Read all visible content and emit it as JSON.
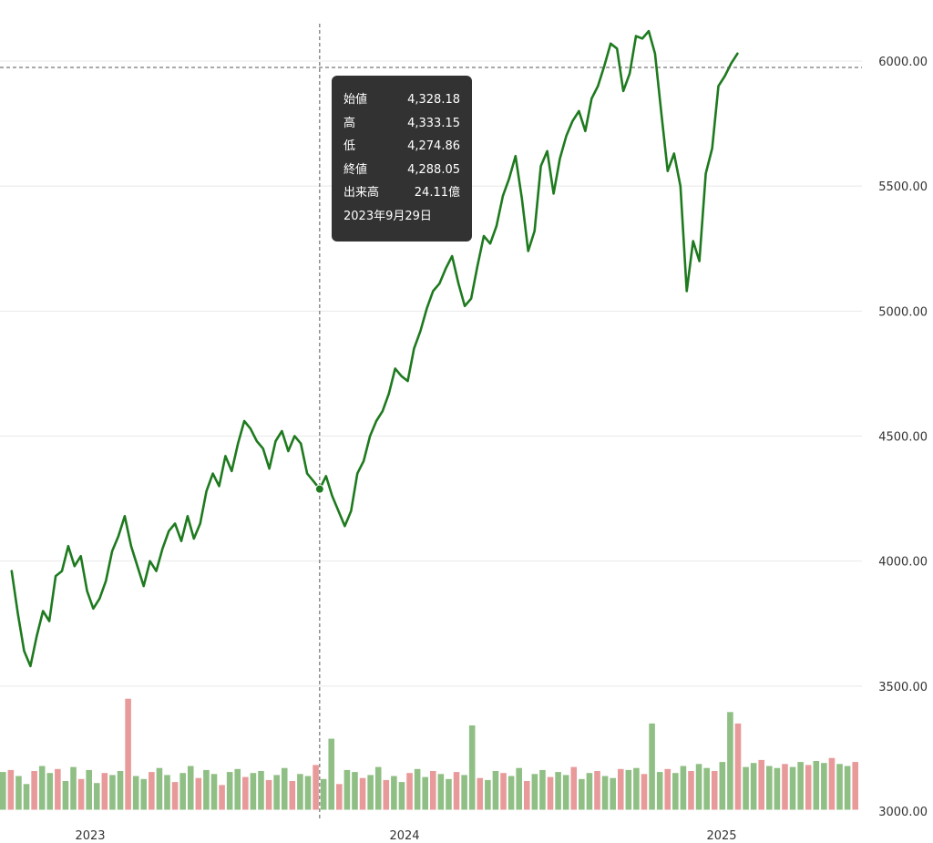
{
  "chart_data": {
    "type": "line",
    "y_ticks": [
      "6000.00",
      "5500.00",
      "5000.00",
      "4500.00",
      "4000.00",
      "3500.00",
      "3000.00"
    ],
    "x_ticks": [
      "2023",
      "2024",
      "2025"
    ],
    "ylim": [
      3000,
      6200
    ],
    "grid": "horizontal",
    "line_color": "#1e7a1e",
    "volume_up_color": "#8fbf84",
    "volume_down_color": "#e89a9a",
    "series": [
      {
        "values": [
          [
            2022.75,
            3960
          ],
          [
            2022.77,
            3790
          ],
          [
            2022.79,
            3640
          ],
          [
            2022.81,
            3580
          ],
          [
            2022.83,
            3700
          ],
          [
            2022.85,
            3800
          ],
          [
            2022.87,
            3760
          ],
          [
            2022.89,
            3940
          ],
          [
            2022.91,
            3960
          ],
          [
            2022.93,
            4060
          ],
          [
            2022.95,
            3980
          ],
          [
            2022.97,
            4020
          ],
          [
            2022.99,
            3880
          ],
          [
            2023.01,
            3810
          ],
          [
            2023.03,
            3850
          ],
          [
            2023.05,
            3920
          ],
          [
            2023.07,
            4040
          ],
          [
            2023.09,
            4100
          ],
          [
            2023.11,
            4180
          ],
          [
            2023.13,
            4060
          ],
          [
            2023.15,
            3980
          ],
          [
            2023.17,
            3900
          ],
          [
            2023.19,
            4000
          ],
          [
            2023.21,
            3960
          ],
          [
            2023.23,
            4050
          ],
          [
            2023.25,
            4120
          ],
          [
            2023.27,
            4150
          ],
          [
            2023.29,
            4080
          ],
          [
            2023.31,
            4180
          ],
          [
            2023.33,
            4090
          ],
          [
            2023.35,
            4150
          ],
          [
            2023.37,
            4280
          ],
          [
            2023.39,
            4350
          ],
          [
            2023.41,
            4300
          ],
          [
            2023.43,
            4420
          ],
          [
            2023.45,
            4360
          ],
          [
            2023.47,
            4470
          ],
          [
            2023.49,
            4560
          ],
          [
            2023.51,
            4530
          ],
          [
            2023.53,
            4480
          ],
          [
            2023.55,
            4450
          ],
          [
            2023.57,
            4370
          ],
          [
            2023.59,
            4480
          ],
          [
            2023.61,
            4520
          ],
          [
            2023.63,
            4440
          ],
          [
            2023.65,
            4500
          ],
          [
            2023.67,
            4470
          ],
          [
            2023.69,
            4350
          ],
          [
            2023.71,
            4320
          ],
          [
            2023.73,
            4288
          ],
          [
            2023.75,
            4340
          ],
          [
            2023.77,
            4260
          ],
          [
            2023.79,
            4200
          ],
          [
            2023.81,
            4140
          ],
          [
            2023.83,
            4200
          ],
          [
            2023.85,
            4350
          ],
          [
            2023.87,
            4400
          ],
          [
            2023.89,
            4500
          ],
          [
            2023.91,
            4560
          ],
          [
            2023.93,
            4600
          ],
          [
            2023.95,
            4670
          ],
          [
            2023.97,
            4770
          ],
          [
            2023.99,
            4740
          ],
          [
            2024.01,
            4720
          ],
          [
            2024.03,
            4850
          ],
          [
            2024.05,
            4920
          ],
          [
            2024.07,
            5010
          ],
          [
            2024.09,
            5080
          ],
          [
            2024.11,
            5110
          ],
          [
            2024.13,
            5170
          ],
          [
            2024.15,
            5220
          ],
          [
            2024.17,
            5110
          ],
          [
            2024.19,
            5020
          ],
          [
            2024.21,
            5050
          ],
          [
            2024.23,
            5180
          ],
          [
            2024.25,
            5300
          ],
          [
            2024.27,
            5270
          ],
          [
            2024.29,
            5340
          ],
          [
            2024.31,
            5460
          ],
          [
            2024.33,
            5530
          ],
          [
            2024.35,
            5620
          ],
          [
            2024.37,
            5450
          ],
          [
            2024.39,
            5240
          ],
          [
            2024.41,
            5320
          ],
          [
            2024.43,
            5580
          ],
          [
            2024.45,
            5640
          ],
          [
            2024.47,
            5470
          ],
          [
            2024.49,
            5610
          ],
          [
            2024.51,
            5700
          ],
          [
            2024.53,
            5760
          ],
          [
            2024.55,
            5800
          ],
          [
            2024.57,
            5720
          ],
          [
            2024.59,
            5850
          ],
          [
            2024.61,
            5900
          ],
          [
            2024.63,
            5980
          ],
          [
            2024.65,
            6070
          ],
          [
            2024.67,
            6050
          ],
          [
            2024.69,
            5880
          ],
          [
            2024.71,
            5950
          ],
          [
            2024.73,
            6100
          ],
          [
            2024.75,
            6090
          ],
          [
            2024.77,
            6120
          ],
          [
            2024.79,
            6030
          ],
          [
            2024.81,
            5790
          ],
          [
            2024.83,
            5560
          ],
          [
            2024.85,
            5630
          ],
          [
            2024.87,
            5500
          ],
          [
            2024.89,
            5080
          ],
          [
            2024.91,
            5280
          ],
          [
            2024.93,
            5200
          ],
          [
            2024.95,
            5550
          ],
          [
            2024.97,
            5650
          ],
          [
            2024.99,
            5900
          ],
          [
            2025.01,
            5940
          ],
          [
            2025.03,
            5990
          ],
          [
            2025.05,
            6030
          ]
        ]
      }
    ],
    "volume_values": [
      3.9,
      4.1,
      3.5,
      2.7,
      4.0,
      4.5,
      3.8,
      4.2,
      3.0,
      4.4,
      3.2,
      4.1,
      2.8,
      3.8,
      3.6,
      4.0,
      5.9,
      3.5,
      3.2,
      3.9,
      4.3,
      3.6,
      2.9,
      3.8,
      4.5,
      3.3,
      4.1,
      3.7,
      2.6,
      3.9,
      4.2,
      3.4,
      3.8,
      4.0,
      3.1,
      3.6,
      4.3,
      3.0,
      3.7,
      3.5,
      4.6,
      3.2,
      3.8,
      2.7,
      4.1,
      3.9,
      3.3,
      3.6,
      4.4,
      3.1,
      3.5,
      2.9,
      3.8,
      4.2,
      3.4,
      4.0,
      3.7,
      3.2,
      3.9,
      3.6,
      4.5,
      3.3,
      3.1,
      4.0,
      3.8,
      3.5,
      4.3,
      3.0,
      3.7,
      4.1,
      3.4,
      3.9,
      3.6,
      4.4,
      3.2,
      3.8,
      4.0,
      3.5,
      3.3,
      4.2,
      4.1,
      4.3,
      3.7,
      4.6,
      3.9,
      4.2,
      3.8,
      4.5,
      4.0,
      4.7,
      4.3,
      4.0,
      4.9,
      5.2,
      4.6,
      4.4,
      4.8,
      5.1,
      4.5,
      4.3,
      4.7,
      4.4,
      4.9,
      4.6,
      5.0,
      4.8,
      5.3,
      4.7,
      4.5,
      4.9
    ],
    "volume_highlight_indices": [
      16,
      42,
      60,
      83,
      93,
      94
    ],
    "tooltip": {
      "open_label": "始値",
      "open_value": "4,328.18",
      "high_label": "高",
      "high_value": "4,333.15",
      "low_label": "低",
      "low_value": "4,274.86",
      "close_label": "終値",
      "close_value": "4,288.05",
      "volume_label": "出来高",
      "volume_value": "24.11億",
      "date": "2023年9月29日"
    },
    "crosshair": {
      "x": 2023.73,
      "y": 6000,
      "marker": [
        2023.73,
        4288
      ]
    }
  }
}
